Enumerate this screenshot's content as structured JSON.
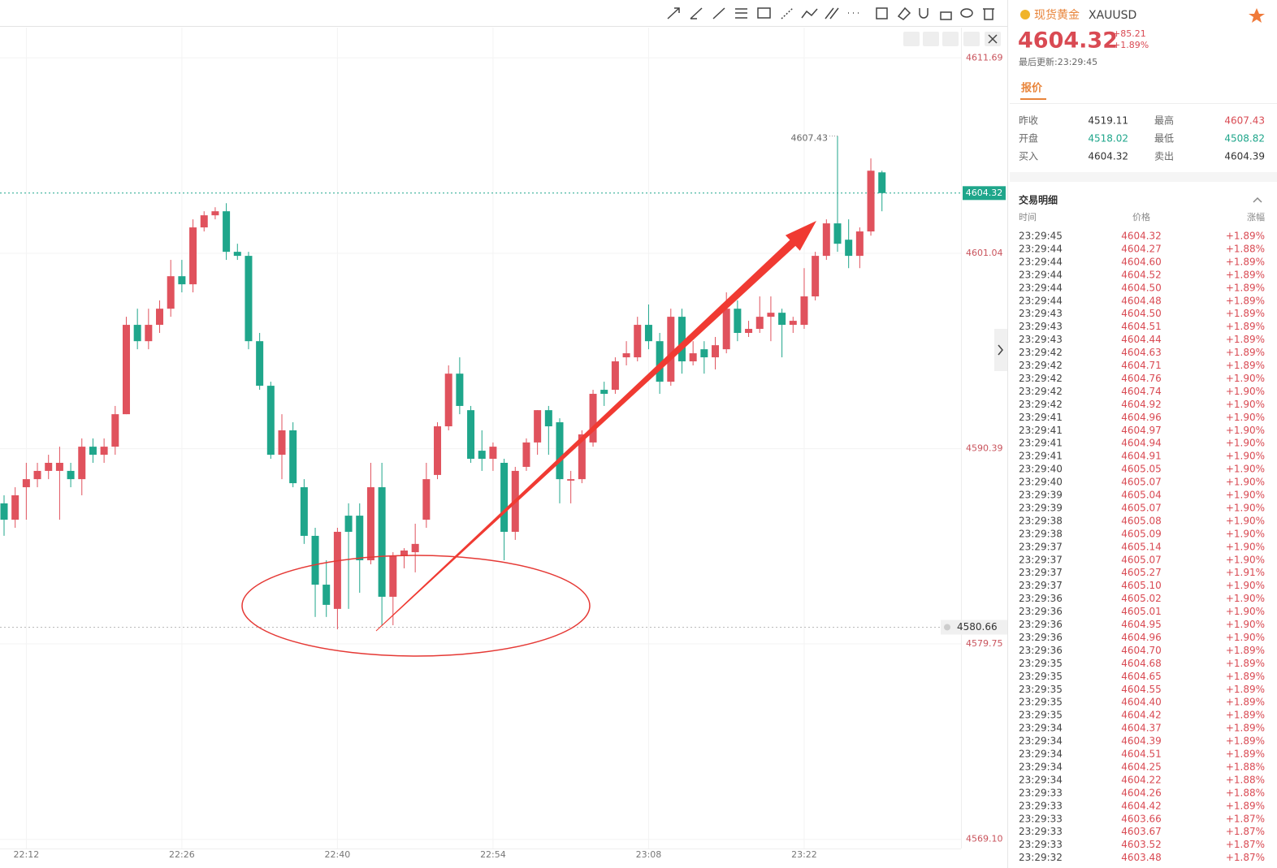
{
  "chart_data": {
    "type": "candlestick",
    "up_color": "#e0525d",
    "down_color": "#1fa68b",
    "grid": true,
    "categories": [
      null,
      null,
      "22:12",
      null,
      null,
      null,
      null,
      null,
      null,
      null,
      null,
      null,
      null,
      null,
      null,
      null,
      "22:26",
      null,
      null,
      null,
      null,
      null,
      null,
      null,
      null,
      null,
      null,
      null,
      null,
      null,
      "22:40",
      null,
      null,
      null,
      null,
      null,
      null,
      null,
      null,
      null,
      null,
      null,
      null,
      null,
      "22:54",
      null,
      null,
      null,
      null,
      null,
      null,
      null,
      null,
      null,
      null,
      null,
      null,
      null,
      "23:08",
      null,
      null,
      null,
      null,
      null,
      null,
      null,
      null,
      null,
      null,
      null,
      null,
      null,
      "23:22",
      null,
      null,
      null,
      null,
      null,
      null,
      null
    ],
    "open": [
      4587.41,
      4586.52,
      4588.29,
      4588.73,
      4589.18,
      4589.18,
      4589.18,
      4588.73,
      4590.5,
      4590.06,
      4590.5,
      4592.27,
      4597.14,
      4596.25,
      4597.14,
      4598.02,
      4599.79,
      4599.35,
      4602.45,
      4603.11,
      4603.33,
      4601.12,
      4600.9,
      4596.25,
      4593.82,
      4590.06,
      4591.39,
      4588.29,
      4585.64,
      4582.98,
      4581.66,
      4586.74,
      4586.74,
      4584.31,
      4588.29,
      4582.32,
      4584.53,
      4584.75,
      4586.52,
      4588.96,
      4591.61,
      4594.48,
      4592.49,
      4590.28,
      4589.84,
      4589.62,
      4585.86,
      4589.4,
      4590.73,
      4592.49,
      4591.83,
      4588.65,
      4588.73,
      4590.73,
      4593.6,
      4593.6,
      4595.37,
      4595.37,
      4597.14,
      4596.25,
      4594.04,
      4597.58,
      4595.15,
      4595.81,
      4595.37,
      4595.81,
      4598.02,
      4596.7,
      4596.92,
      4597.58,
      4597.8,
      4597.14,
      4597.14,
      4598.69,
      4600.9,
      4602.67,
      4601.78,
      4600.9,
      4602.23,
      4605.45
    ],
    "high": [
      4587.85,
      4588.29,
      4589.62,
      4589.62,
      4590.06,
      4590.5,
      4589.62,
      4590.95,
      4590.95,
      4590.95,
      4592.72,
      4597.58,
      4598.02,
      4598.02,
      4598.47,
      4600.68,
      4600.68,
      4602.89,
      4603.33,
      4603.55,
      4603.77,
      4601.56,
      4601.12,
      4596.7,
      4594.04,
      4592.27,
      4591.83,
      4588.73,
      4586.08,
      4584.31,
      4586.08,
      4587.41,
      4587.41,
      4589.62,
      4589.62,
      4584.75,
      4584.97,
      4586.3,
      4589.62,
      4591.83,
      4594.93,
      4595.37,
      4592.72,
      4591.39,
      4590.73,
      4589.84,
      4589.4,
      4590.95,
      4592.49,
      4592.72,
      4592.05,
      4589.18,
      4591.39,
      4593.6,
      4594.04,
      4595.37,
      4596.25,
      4597.58,
      4598.25,
      4596.7,
      4598.02,
      4598.02,
      4596.25,
      4596.25,
      4596.48,
      4598.91,
      4598.47,
      4597.36,
      4598.69,
      4598.69,
      4598.02,
      4597.58,
      4600.23,
      4601.12,
      4602.89,
      4607.43,
      4602.89,
      4602.45,
      4606.21,
      4605.54
    ],
    "low": [
      4585.64,
      4586.08,
      4586.52,
      4588.29,
      4588.73,
      4586.52,
      4588.29,
      4587.85,
      4589.62,
      4589.62,
      4590.06,
      4592.27,
      4595.81,
      4595.81,
      4596.7,
      4597.58,
      4598.91,
      4598.91,
      4602.23,
      4602.89,
      4600.68,
      4600.68,
      4595.81,
      4593.6,
      4589.84,
      4588.73,
      4588.29,
      4585.2,
      4581.22,
      4581.22,
      4580.55,
      4581.66,
      4582.54,
      4584.09,
      4580.77,
      4580.77,
      4583.87,
      4583.65,
      4586.08,
      4588.73,
      4591.39,
      4592.27,
      4589.62,
      4589.18,
      4589.18,
      4584.31,
      4585.42,
      4589.18,
      4590.06,
      4590.06,
      4587.41,
      4587.41,
      4588.51,
      4590.5,
      4592.72,
      4593.38,
      4594.93,
      4595.15,
      4595.81,
      4593.38,
      4593.82,
      4594.48,
      4594.93,
      4594.48,
      4594.71,
      4595.59,
      4596.25,
      4596.48,
      4596.7,
      4596.25,
      4595.37,
      4596.7,
      4596.92,
      4598.47,
      4600.68,
      4601.12,
      4600.23,
      4600.23,
      4602.0,
      4603.33
    ],
    "close": [
      4586.52,
      4587.85,
      4588.73,
      4589.18,
      4589.62,
      4589.62,
      4588.73,
      4590.5,
      4590.06,
      4590.5,
      4592.27,
      4597.14,
      4596.25,
      4597.14,
      4598.02,
      4599.79,
      4599.35,
      4602.45,
      4603.11,
      4603.33,
      4601.12,
      4600.9,
      4596.25,
      4593.82,
      4590.06,
      4591.39,
      4588.51,
      4585.64,
      4582.98,
      4581.88,
      4585.86,
      4585.86,
      4584.31,
      4588.29,
      4582.32,
      4584.53,
      4584.84,
      4585.2,
      4588.73,
      4591.61,
      4594.48,
      4592.72,
      4589.84,
      4589.84,
      4590.5,
      4585.86,
      4589.18,
      4590.73,
      4592.49,
      4591.61,
      4588.73,
      4588.73,
      4591.17,
      4593.38,
      4593.38,
      4595.15,
      4595.59,
      4597.14,
      4596.25,
      4594.04,
      4597.58,
      4595.15,
      4595.59,
      4595.37,
      4596.03,
      4598.02,
      4596.7,
      4596.92,
      4597.58,
      4597.8,
      4597.14,
      4597.36,
      4598.69,
      4600.9,
      4602.67,
      4601.56,
      4600.9,
      4602.23,
      4605.54,
      4604.32
    ],
    "ylim": [
      4568.6,
      4612.1
    ],
    "yticks": [
      4611.69,
      4601.04,
      4590.39,
      4579.75,
      {
        "value": 4569.1,
        "label": "4569.10"
      }
    ],
    "last_price": 4604.32,
    "alert_price": 4580.66,
    "high_label": 4607.43
  },
  "panel": {
    "name": "现货黄金",
    "symbol": "XAUUSD",
    "price": "4604.32",
    "change": "+85.21",
    "change_pct": "+1.89%",
    "updated": "最后更新:23:29:45",
    "tab": "报价",
    "stats": [
      {
        "label": "昨收",
        "value": "4519.11"
      },
      {
        "label": "最高",
        "value": "4607.43"
      },
      {
        "label": "开盘",
        "value": "4518.02"
      },
      {
        "label": "最低",
        "value": "4508.82"
      },
      {
        "label": "买入",
        "value": "4604.32"
      },
      {
        "label": "卖出",
        "value": "4604.39"
      }
    ],
    "trades_title": "交易明细",
    "trades_header": [
      "时间",
      "价格",
      "涨幅"
    ],
    "trades": [
      [
        "23:29:45",
        "4604.32",
        "+1.89%"
      ],
      [
        "23:29:44",
        "4604.27",
        "+1.88%"
      ],
      [
        "23:29:44",
        "4604.60",
        "+1.89%"
      ],
      [
        "23:29:44",
        "4604.52",
        "+1.89%"
      ],
      [
        "23:29:44",
        "4604.50",
        "+1.89%"
      ],
      [
        "23:29:44",
        "4604.48",
        "+1.89%"
      ],
      [
        "23:29:43",
        "4604.50",
        "+1.89%"
      ],
      [
        "23:29:43",
        "4604.51",
        "+1.89%"
      ],
      [
        "23:29:43",
        "4604.44",
        "+1.89%"
      ],
      [
        "23:29:42",
        "4604.63",
        "+1.89%"
      ],
      [
        "23:29:42",
        "4604.71",
        "+1.89%"
      ],
      [
        "23:29:42",
        "4604.76",
        "+1.90%"
      ],
      [
        "23:29:42",
        "4604.74",
        "+1.90%"
      ],
      [
        "23:29:42",
        "4604.92",
        "+1.90%"
      ],
      [
        "23:29:41",
        "4604.96",
        "+1.90%"
      ],
      [
        "23:29:41",
        "4604.97",
        "+1.90%"
      ],
      [
        "23:29:41",
        "4604.94",
        "+1.90%"
      ],
      [
        "23:29:41",
        "4604.91",
        "+1.90%"
      ],
      [
        "23:29:40",
        "4605.05",
        "+1.90%"
      ],
      [
        "23:29:40",
        "4605.07",
        "+1.90%"
      ],
      [
        "23:29:39",
        "4605.04",
        "+1.90%"
      ],
      [
        "23:29:39",
        "4605.07",
        "+1.90%"
      ],
      [
        "23:29:38",
        "4605.08",
        "+1.90%"
      ],
      [
        "23:29:38",
        "4605.09",
        "+1.90%"
      ],
      [
        "23:29:37",
        "4605.14",
        "+1.90%"
      ],
      [
        "23:29:37",
        "4605.07",
        "+1.90%"
      ],
      [
        "23:29:37",
        "4605.27",
        "+1.91%"
      ],
      [
        "23:29:37",
        "4605.10",
        "+1.90%"
      ],
      [
        "23:29:36",
        "4605.02",
        "+1.90%"
      ],
      [
        "23:29:36",
        "4605.01",
        "+1.90%"
      ],
      [
        "23:29:36",
        "4604.95",
        "+1.90%"
      ],
      [
        "23:29:36",
        "4604.96",
        "+1.90%"
      ],
      [
        "23:29:36",
        "4604.70",
        "+1.89%"
      ],
      [
        "23:29:35",
        "4604.68",
        "+1.89%"
      ],
      [
        "23:29:35",
        "4604.65",
        "+1.89%"
      ],
      [
        "23:29:35",
        "4604.55",
        "+1.89%"
      ],
      [
        "23:29:35",
        "4604.40",
        "+1.89%"
      ],
      [
        "23:29:35",
        "4604.42",
        "+1.89%"
      ],
      [
        "23:29:34",
        "4604.37",
        "+1.89%"
      ],
      [
        "23:29:34",
        "4604.39",
        "+1.89%"
      ],
      [
        "23:29:34",
        "4604.51",
        "+1.89%"
      ],
      [
        "23:29:34",
        "4604.25",
        "+1.88%"
      ],
      [
        "23:29:34",
        "4604.22",
        "+1.88%"
      ],
      [
        "23:29:33",
        "4604.26",
        "+1.88%"
      ],
      [
        "23:29:33",
        "4604.42",
        "+1.89%"
      ],
      [
        "23:29:33",
        "4603.66",
        "+1.87%"
      ],
      [
        "23:29:33",
        "4603.67",
        "+1.87%"
      ],
      [
        "23:29:33",
        "4603.52",
        "+1.87%"
      ],
      [
        "23:29:32",
        "4603.48",
        "+1.87%"
      ]
    ]
  }
}
